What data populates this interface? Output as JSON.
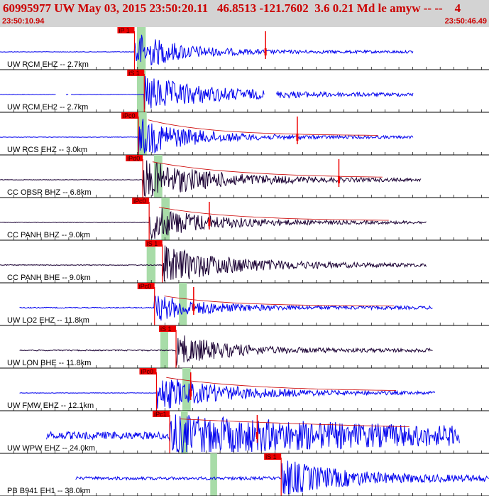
{
  "header": {
    "title": "60995977 UW May 03, 2015 23:50:20.11   46.8513 -121.7602  3.6 0.21 Md le amyw -- --    4",
    "start_time": "23:50:10.94",
    "end_time": "23:50:46.49"
  },
  "colors": {
    "header_bg": "#d3d3d3",
    "header_text": "#cc0000",
    "trace_blue": "#0000ee",
    "trace_dark": "#1a0033",
    "pick": "#ee0000",
    "highlight": "#a8dca8",
    "envelope": "#cc0000"
  },
  "chart_data": {
    "type": "seismogram",
    "time_range": [
      "23:50:10.94",
      "23:50:46.49"
    ],
    "traces": [
      {
        "label": "UW RCM EHZ -- 2.7km",
        "color": "blue",
        "pick": "iP 1",
        "onset": 0.275,
        "start": 0.0,
        "end": 0.845,
        "gaps": [],
        "energy": 1.0,
        "decay": 0.09,
        "noise": 0.02,
        "env": false,
        "pick_marks": [
          0.543
        ],
        "green": [
          0.28,
          0.298
        ]
      },
      {
        "label": "UW RCM EH2 -- 2.7km",
        "color": "blue",
        "pick": "iS 1",
        "onset": 0.295,
        "start": 0.0,
        "end": 0.845,
        "gaps": [
          [
            0.115,
            0.135
          ],
          [
            0.14,
            0.145
          ],
          [
            0.54,
            0.565
          ]
        ],
        "energy": 0.9,
        "decay": 0.14,
        "noise": 0.02,
        "env": false,
        "pick_marks": [],
        "green": [
          0.28,
          0.298
        ]
      },
      {
        "label": "UW RCS EHZ -- 3.0km",
        "color": "blue",
        "pick": "iPc0",
        "onset": 0.283,
        "start": 0.0,
        "end": 0.845,
        "gaps": [],
        "energy": 1.0,
        "decay": 0.1,
        "noise": 0.02,
        "env": true,
        "pick_marks": [
          0.608
        ],
        "green": [
          0.28,
          0.3
        ]
      },
      {
        "label": "CC OBSR BHZ -- 6.8km",
        "color": "dark",
        "pick": "iPd0",
        "onset": 0.292,
        "start": 0.0,
        "end": 0.862,
        "gaps": [],
        "energy": 1.0,
        "decay": 0.14,
        "noise": 0.02,
        "env": true,
        "pick_marks": [
          0.693
        ],
        "green": [
          0.315,
          0.332
        ]
      },
      {
        "label": "CC PANH BHZ -- 9.0km",
        "color": "dark",
        "pick": "iPc0",
        "onset": 0.305,
        "start": 0.0,
        "end": 0.872,
        "gaps": [],
        "energy": 0.85,
        "decay": 0.12,
        "noise": 0.02,
        "env": true,
        "pick_marks": [
          0.428
        ],
        "green": [
          0.33,
          0.347
        ]
      },
      {
        "label": "CC PANH BHE -- 9.0km",
        "color": "dark",
        "pick": "iS 1",
        "onset": 0.332,
        "start": 0.0,
        "end": 0.872,
        "gaps": [],
        "energy": 0.95,
        "decay": 0.14,
        "noise": 0.03,
        "env": false,
        "pick_marks": [],
        "green": [
          0.3,
          0.318
        ]
      },
      {
        "label": "UW LO2 EHZ -- 11.8km",
        "color": "blue",
        "pick": "iPc0",
        "onset": 0.316,
        "start": 0.04,
        "end": 0.885,
        "gaps": [],
        "energy": 0.65,
        "decay": 0.1,
        "noise": 0.04,
        "env": true,
        "pick_marks": [
          0.396
        ],
        "green": [
          0.366,
          0.382
        ]
      },
      {
        "label": "UW LON BHE -- 11.8km",
        "color": "dark",
        "pick": "iS 1",
        "onset": 0.36,
        "start": 0.04,
        "end": 0.885,
        "gaps": [],
        "energy": 0.8,
        "decay": 0.1,
        "noise": 0.05,
        "env": false,
        "pick_marks": [],
        "green": [
          0.328,
          0.344
        ]
      },
      {
        "label": "UW FMW EHZ -- 12.1km",
        "color": "blue",
        "pick": "iPc0",
        "onset": 0.32,
        "start": 0.04,
        "end": 0.89,
        "gaps": [],
        "energy": 0.85,
        "decay": 0.14,
        "noise": 0.02,
        "env": true,
        "pick_marks": [
          0.39
        ],
        "green": [
          0.373,
          0.39
        ]
      },
      {
        "label": "UW WPW EHZ -- 24.0km",
        "color": "blue",
        "pick": "iPc1",
        "onset": 0.347,
        "start": 0.095,
        "end": 0.94,
        "gaps": [],
        "energy": 0.85,
        "decay": 0.5,
        "noise": 0.3,
        "env": true,
        "pick_marks": [
          0.526
        ],
        "green": [
          0.37,
          0.384
        ]
      },
      {
        "label": "PB B941 EH1 -- 38.0km",
        "color": "blue",
        "pick": "iS 1",
        "onset": 0.575,
        "start": 0.155,
        "end": 1.0,
        "gaps": [],
        "energy": 0.9,
        "decay": 0.12,
        "noise": 0.12,
        "env": false,
        "pick_marks": [],
        "green": [
          0.43,
          0.444
        ]
      }
    ]
  }
}
